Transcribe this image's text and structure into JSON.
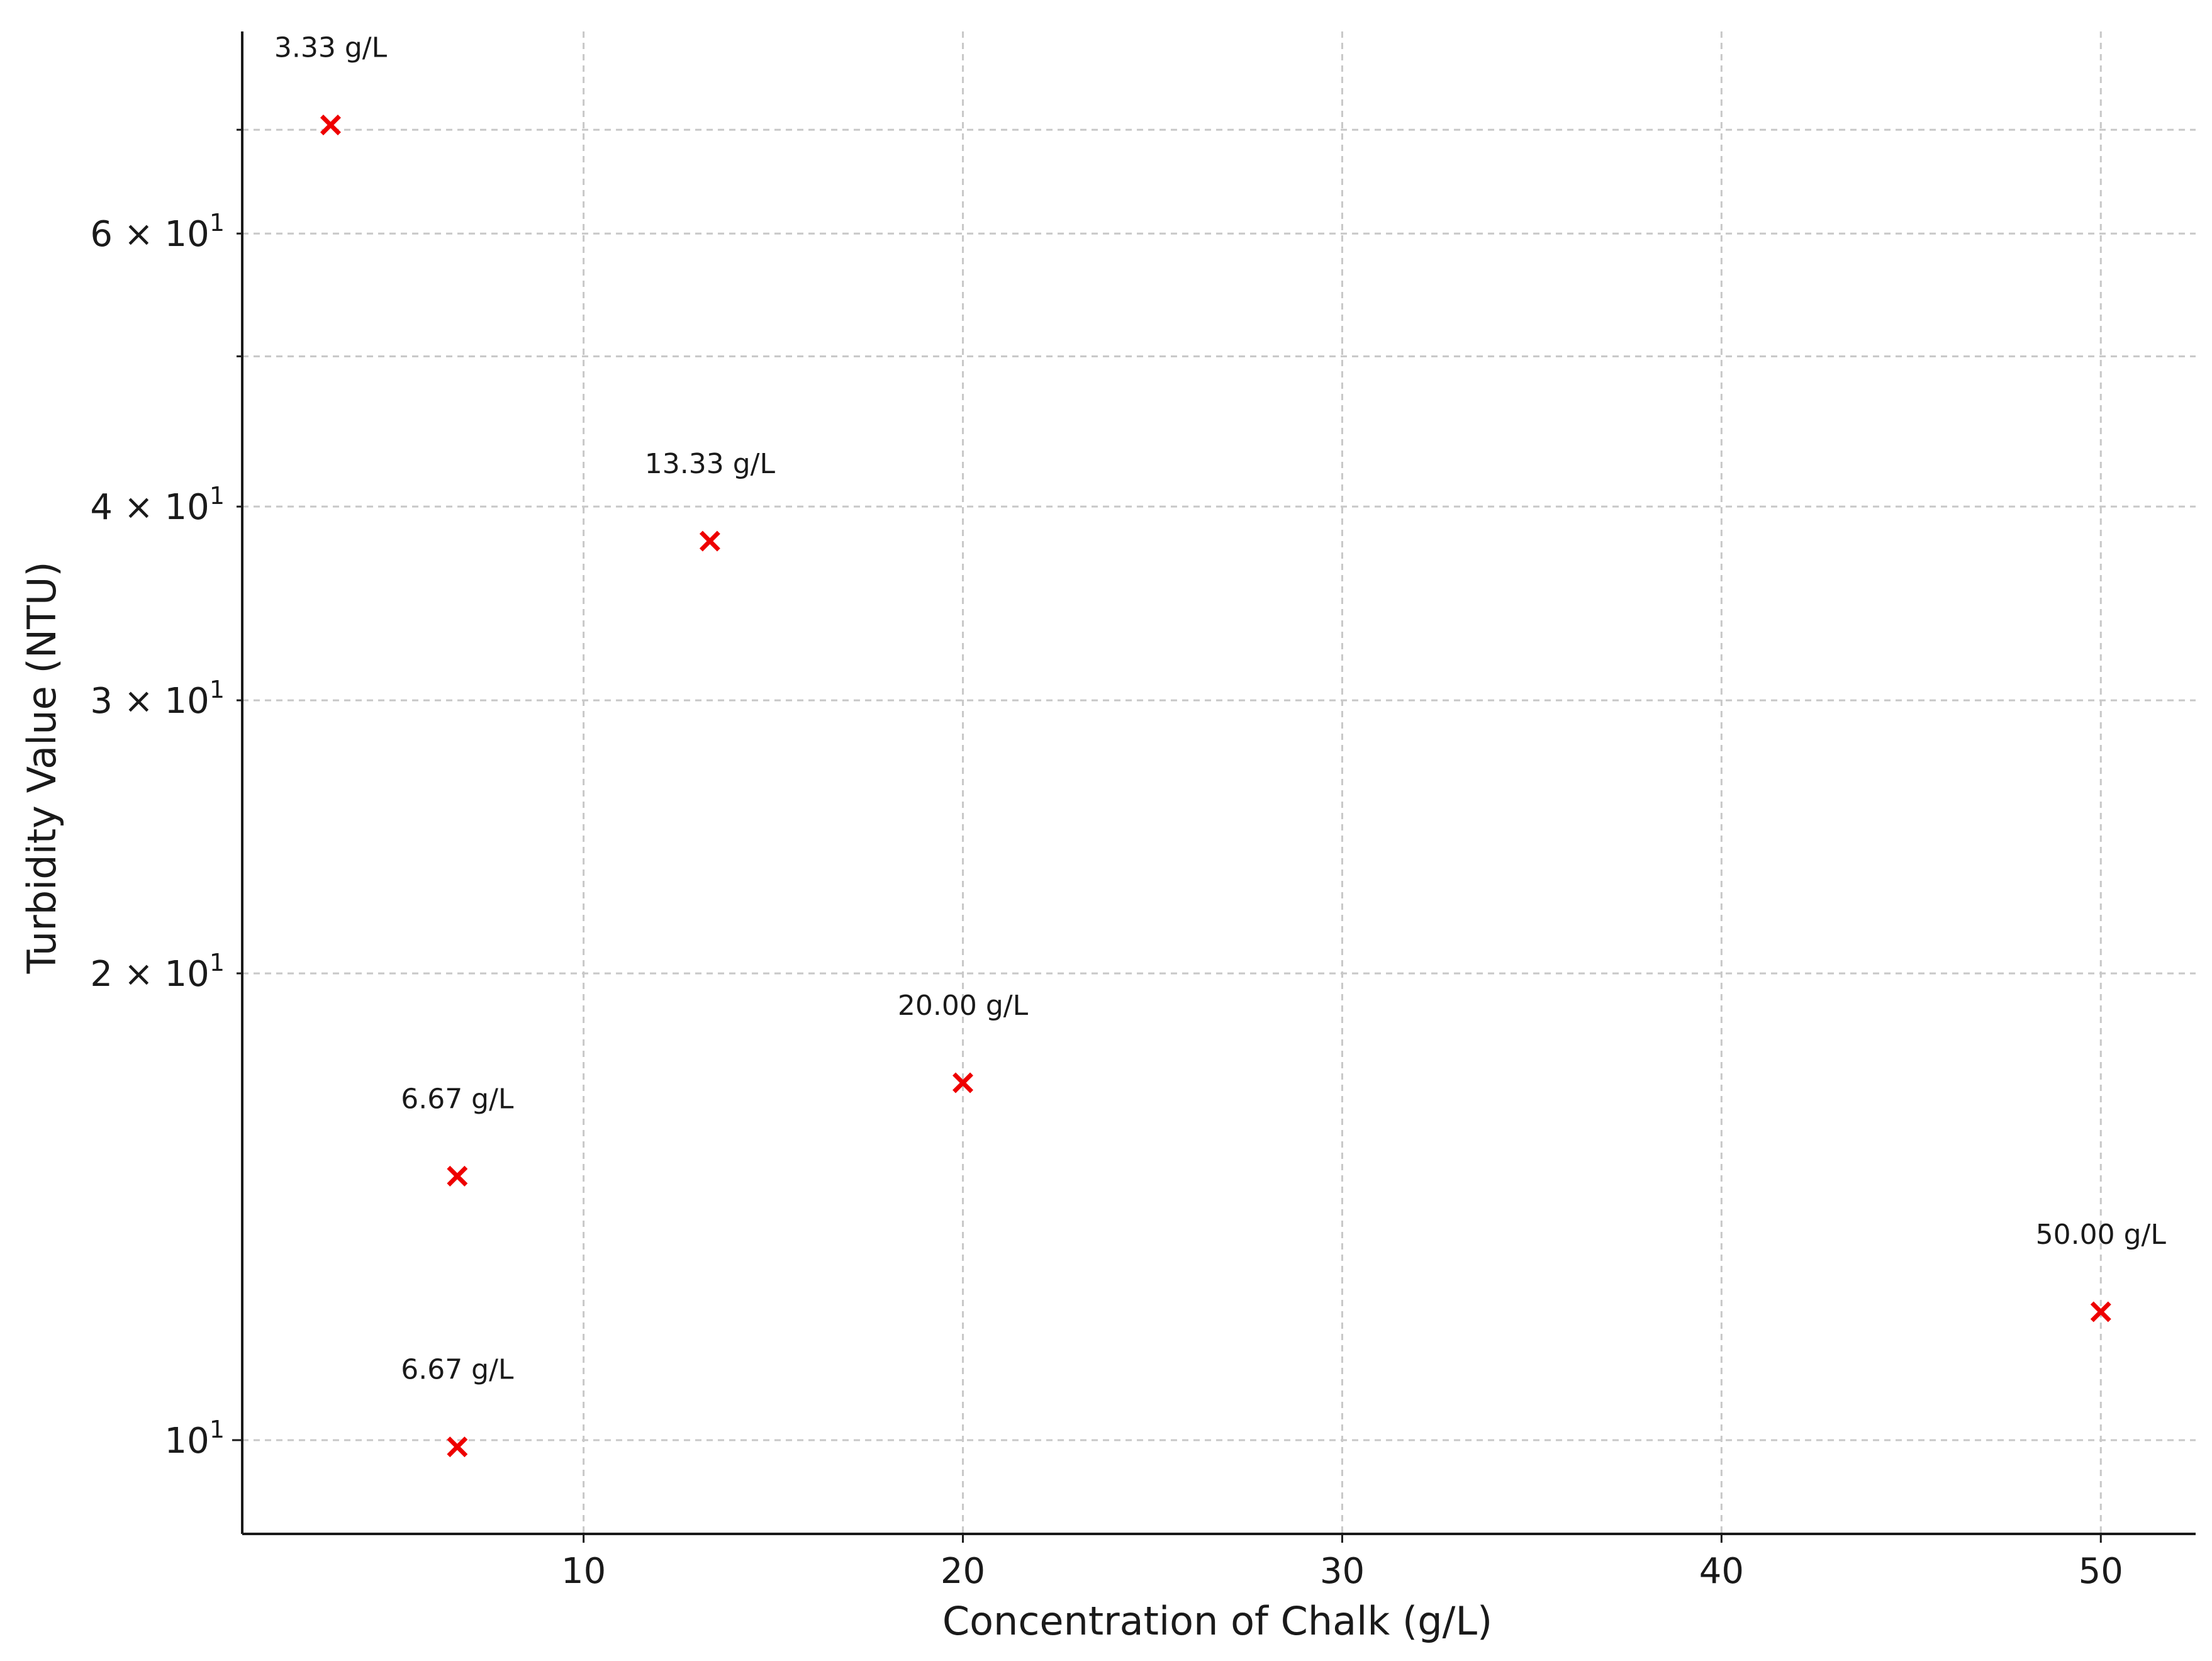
{
  "chart_data": {
    "type": "scatter",
    "title": "",
    "xlabel": "Concentration of Chalk (g/L)",
    "ylabel": "Turbidity Value (NTU)",
    "xlim": [
      1.0,
      52.5
    ],
    "ylim": [
      8.7,
      81
    ],
    "yscale": "log",
    "grid": true,
    "marker": "x",
    "marker_color": "#ee0000",
    "x_ticks": [
      {
        "value": 10,
        "label": "10"
      },
      {
        "value": 20,
        "label": "20"
      },
      {
        "value": 30,
        "label": "30"
      },
      {
        "value": 40,
        "label": "40"
      },
      {
        "value": 50,
        "label": "50"
      }
    ],
    "y_major_ticks": [
      {
        "value": 10,
        "label": "10",
        "exp": "1",
        "mantissa": ""
      }
    ],
    "y_minor_ticks": [
      {
        "value": 20,
        "label": "2 × 10",
        "exp": "1"
      },
      {
        "value": 30,
        "label": "3 × 10",
        "exp": "1"
      },
      {
        "value": 40,
        "label": "4 × 10",
        "exp": "1"
      },
      {
        "value": 50,
        "label": "",
        "exp": ""
      },
      {
        "value": 60,
        "label": "6 × 10",
        "exp": "1"
      },
      {
        "value": 70,
        "label": "",
        "exp": ""
      }
    ],
    "points": [
      {
        "x": 3.33,
        "y": 70.5,
        "label": "3.33 g/L"
      },
      {
        "x": 6.67,
        "y": 14.8,
        "label": "6.67 g/L"
      },
      {
        "x": 6.67,
        "y": 9.9,
        "label": "6.67 g/L"
      },
      {
        "x": 13.33,
        "y": 38.0,
        "label": "13.33 g/L"
      },
      {
        "x": 20.0,
        "y": 17.0,
        "label": "20.00 g/L"
      },
      {
        "x": 50.0,
        "y": 12.1,
        "label": "50.00 g/L"
      }
    ]
  }
}
